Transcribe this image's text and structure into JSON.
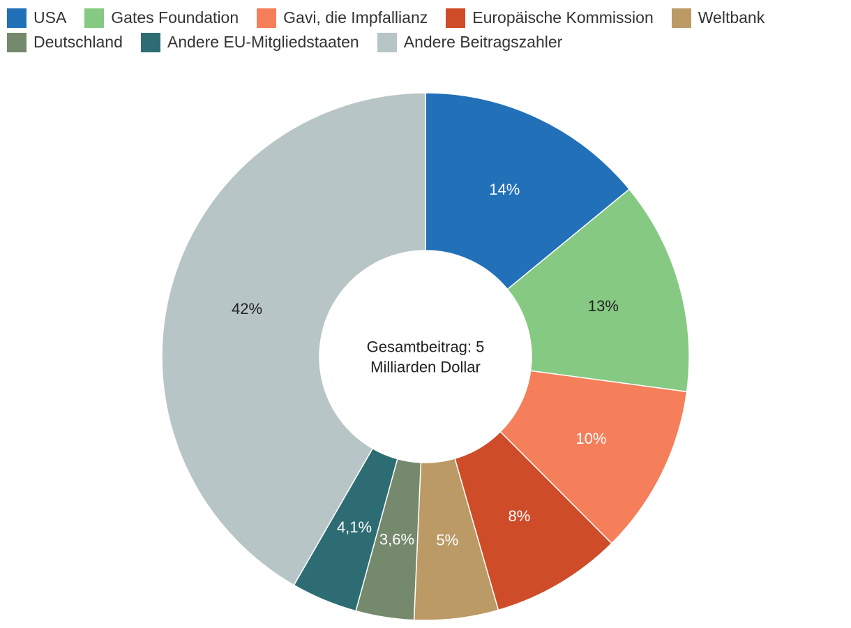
{
  "chart_data": {
    "type": "pie",
    "subtype": "donut",
    "center_label": "Gesamtbeitrag: 5 Milliarden Dollar",
    "center_lines": [
      "Gesamtbeitrag: 5",
      "Milliarden Dollar"
    ],
    "legend_position": "top-left",
    "slices": [
      {
        "name": "USA",
        "value": 14.2,
        "label": "14%",
        "color": "#2170b8",
        "label_color": "#ffffff"
      },
      {
        "name": "Gates Foundation",
        "value": 13.2,
        "label": "13%",
        "color": "#86c982",
        "label_color": "#222222"
      },
      {
        "name": "Gavi, die Impfallianz",
        "value": 10.5,
        "label": "10%",
        "color": "#f47f5a",
        "label_color": "#ffffff"
      },
      {
        "name": "Europäische Kommission",
        "value": 8.1,
        "label": "8%",
        "color": "#cf4c29",
        "label_color": "#ffffff"
      },
      {
        "name": "Weltbank",
        "value": 5.2,
        "label": "5%",
        "color": "#bb9a66",
        "label_color": "#ffffff"
      },
      {
        "name": "Deutschland",
        "value": 3.6,
        "label": "3,6%",
        "color": "#75896c",
        "label_color": "#ffffff"
      },
      {
        "name": "Andere EU-Mitgliedstaaten",
        "value": 4.1,
        "label": "4,1%",
        "color": "#2e6c74",
        "label_color": "#ffffff"
      },
      {
        "name": "Andere Beitragszahler",
        "value": 42.1,
        "label": "42%",
        "color": "#b7c5c7",
        "label_color": "#222222"
      }
    ]
  }
}
